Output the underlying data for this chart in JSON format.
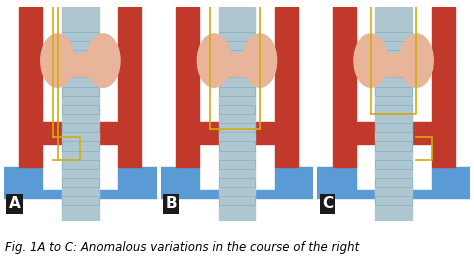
{
  "title": "Fig. 1A to C: Anomalous variations in the course of the right",
  "panels": [
    "A",
    "B",
    "C"
  ],
  "panel_label_color": "#ffffff",
  "panel_bg_color": "#1a1a1a",
  "background_color": "#ffffff",
  "caption_fontsize": 8.5,
  "label_fontsize": 11,
  "colors": {
    "artery_red": "#c0392b",
    "artery_dark": "#922b21",
    "trachea_blue": "#aec6cf",
    "trachea_dark": "#7fb3c8",
    "thyroid_peach": "#e8b49a",
    "nerve_yellow": "#d4ac0d",
    "vein_blue": "#5b9bd5",
    "vein_light": "#a9cce3",
    "skin_bg": "#f5e6da",
    "white": "#ffffff",
    "outline": "#8b0000"
  }
}
